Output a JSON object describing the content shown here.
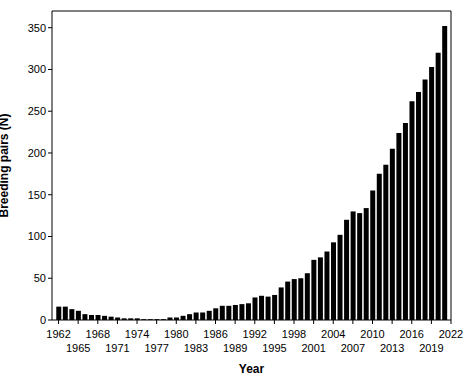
{
  "chart_data": {
    "type": "bar",
    "x_label": "Year",
    "y_label": "Breeding pairs (N)",
    "x": [
      1962,
      1963,
      1964,
      1965,
      1966,
      1967,
      1968,
      1969,
      1970,
      1971,
      1972,
      1973,
      1974,
      1975,
      1976,
      1977,
      1978,
      1979,
      1980,
      1981,
      1982,
      1983,
      1984,
      1985,
      1986,
      1987,
      1988,
      1989,
      1990,
      1991,
      1992,
      1993,
      1994,
      1995,
      1996,
      1997,
      1998,
      1999,
      2000,
      2001,
      2002,
      2003,
      2004,
      2005,
      2006,
      2007,
      2008,
      2009,
      2010,
      2011,
      2012,
      2013,
      2014,
      2015,
      2016,
      2017,
      2018,
      2019,
      2020,
      2021
    ],
    "values": [
      16,
      16,
      13,
      11,
      7,
      6,
      6,
      5,
      4,
      3,
      2,
      2,
      2,
      1,
      1,
      1,
      1,
      3,
      3,
      5,
      7,
      9,
      9,
      11,
      14,
      17,
      17,
      18,
      19,
      20,
      27,
      29,
      28,
      30,
      39,
      46,
      49,
      50,
      56,
      72,
      75,
      82,
      93,
      102,
      120,
      130,
      128,
      134,
      155,
      175,
      186,
      205,
      224,
      236,
      262,
      273,
      288,
      303,
      320,
      352
    ],
    "color": "#000000",
    "xlim": [
      1961,
      2022
    ],
    "xticks": [
      1962,
      1965,
      1968,
      1971,
      1974,
      1977,
      1980,
      1983,
      1986,
      1989,
      1992,
      1995,
      1998,
      2001,
      2004,
      2007,
      2010,
      2013,
      2016,
      2019,
      2022
    ],
    "ylim": [
      0,
      370
    ],
    "yticks": [
      0,
      50,
      100,
      150,
      200,
      250,
      300,
      350
    ],
    "grid": false
  }
}
